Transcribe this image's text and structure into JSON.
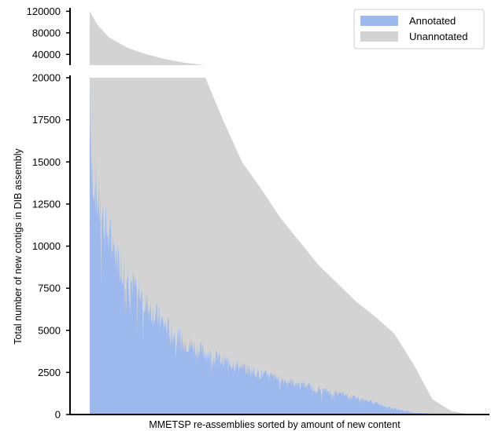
{
  "chart_data": {
    "type": "area",
    "stacked": true,
    "broken_y_axis": true,
    "xlabel": "MMETSP re-assemblies sorted by amount of new content",
    "ylabel": "Total number of new contigs in DIB assembly",
    "legend": {
      "position": "top-right",
      "entries": [
        {
          "label": "Annotated",
          "color": "#9cb8ec"
        },
        {
          "label": "Unannotated",
          "color": "#d3d3d3"
        }
      ]
    },
    "upper_panel": {
      "ylim": [
        20000,
        122000
      ],
      "yticks": [
        40000,
        80000,
        120000
      ],
      "ytick_labels": [
        "40000",
        "80000",
        "120000"
      ]
    },
    "lower_panel": {
      "ylim": [
        0,
        20000
      ],
      "yticks": [
        0,
        2500,
        5000,
        7500,
        10000,
        12500,
        15000,
        17500,
        20000
      ],
      "ytick_labels": [
        "0",
        "2500",
        "5000",
        "7500",
        "10000",
        "12500",
        "15000",
        "17500",
        "20000"
      ]
    },
    "x_count": 680,
    "series": [
      {
        "name": "Unannotated",
        "note": "total (annotated + unannotated) height per sorted assembly",
        "x_fraction": [
          0,
          0.02,
          0.05,
          0.1,
          0.15,
          0.2,
          0.25,
          0.3,
          0.35,
          0.4,
          0.45,
          0.5,
          0.55,
          0.6,
          0.65,
          0.7,
          0.75,
          0.8,
          0.85,
          0.9,
          0.95,
          1.0
        ],
        "total": [
          120000,
          95000,
          72000,
          52000,
          40000,
          31000,
          24500,
          20200,
          17500,
          15000,
          13400,
          11700,
          10300,
          8900,
          7800,
          6700,
          5800,
          4800,
          3000,
          900,
          200,
          0
        ]
      },
      {
        "name": "Annotated",
        "x_fraction": [
          0,
          0.005,
          0.02,
          0.05,
          0.1,
          0.15,
          0.2,
          0.25,
          0.3,
          0.35,
          0.4,
          0.45,
          0.5,
          0.55,
          0.6,
          0.65,
          0.7,
          0.75,
          0.8,
          0.85,
          0.9,
          0.95,
          1.0
        ],
        "values": [
          20000,
          15000,
          12800,
          10500,
          8200,
          6500,
          5200,
          4300,
          3700,
          3200,
          2800,
          2400,
          2100,
          1800,
          1500,
          1250,
          1000,
          700,
          350,
          120,
          40,
          10,
          0
        ]
      }
    ]
  }
}
